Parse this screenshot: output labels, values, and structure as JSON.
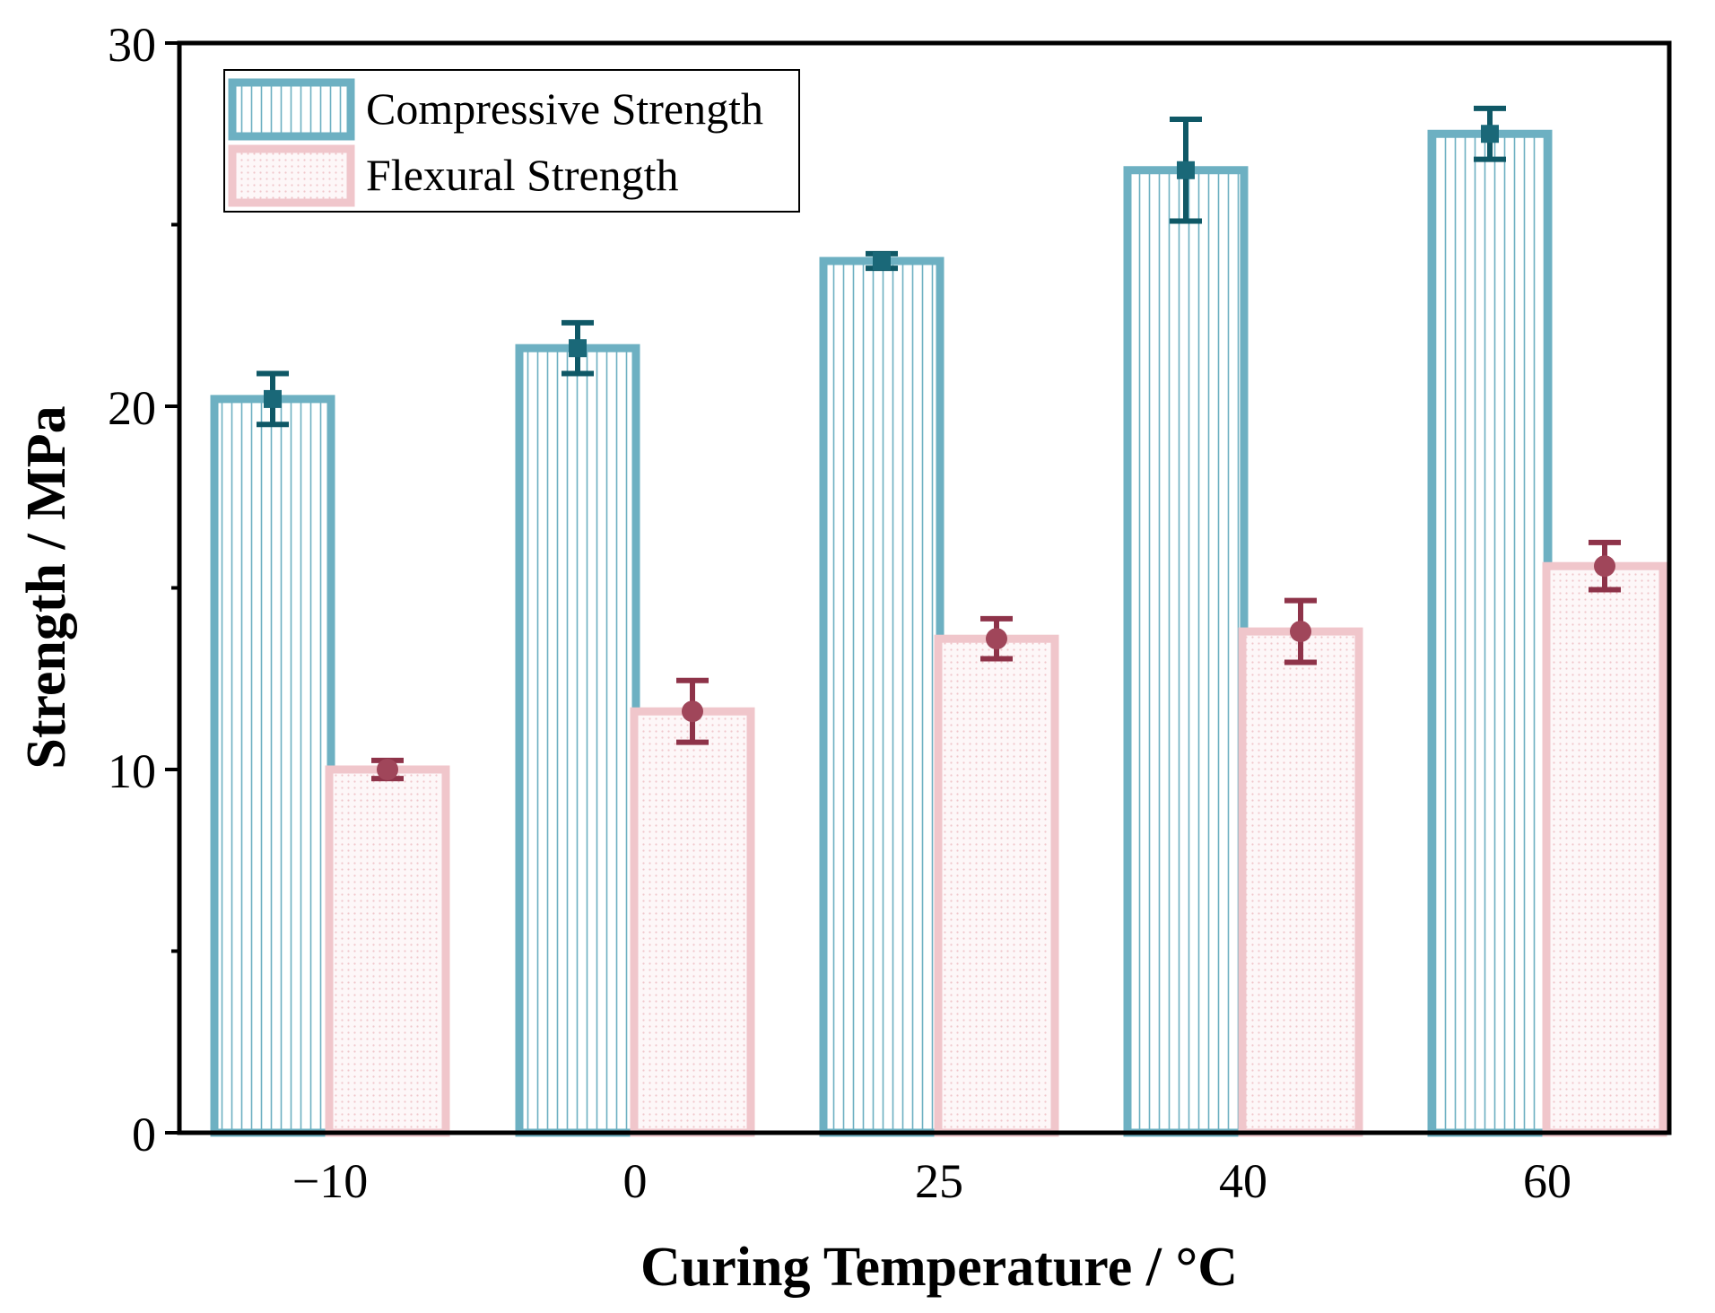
{
  "chart_data": {
    "type": "bar",
    "title": "",
    "xlabel": "Curing Temperature / °C",
    "ylabel": "Strength / MPa",
    "categories": [
      "−10",
      "0",
      "25",
      "40",
      "60"
    ],
    "ylim": [
      0,
      30
    ],
    "yticks": [
      "0",
      "10",
      "20",
      "30"
    ],
    "grid": false,
    "legend_position": "top-left",
    "series": [
      {
        "name": "Compressive Strength",
        "values": [
          20.2,
          21.6,
          24.0,
          26.5,
          27.5
        ],
        "errors": [
          0.7,
          0.7,
          0.2,
          1.4,
          0.7
        ],
        "color": "#6db0c2",
        "error_color": "#0f5866",
        "pattern": "vertical-lines",
        "marker": "square"
      },
      {
        "name": "Flexural Strength",
        "values": [
          10.0,
          11.6,
          13.6,
          13.8,
          15.6
        ],
        "errors": [
          0.25,
          0.85,
          0.55,
          0.85,
          0.65
        ],
        "color": "#f0c6cb",
        "error_color": "#8e3349",
        "pattern": "dots",
        "marker": "circle"
      }
    ]
  }
}
